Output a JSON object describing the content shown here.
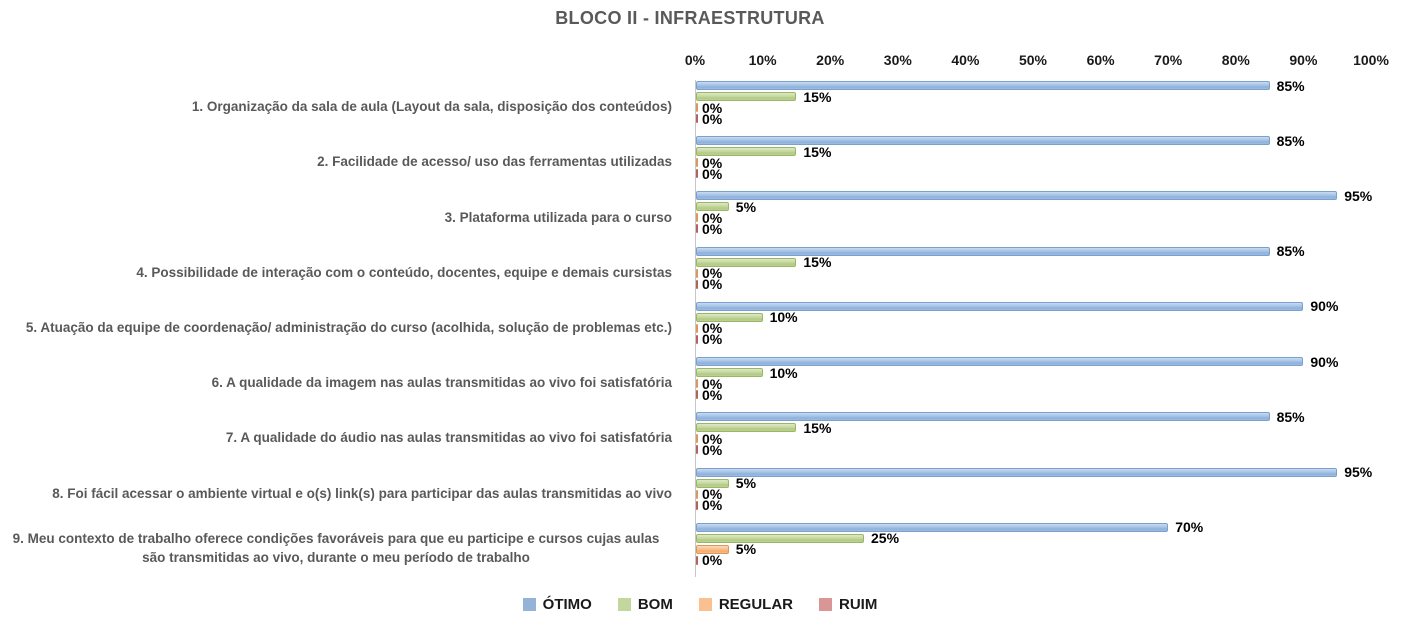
{
  "title": "BLOCO II - INFRAESTRUTURA",
  "chart_data": {
    "type": "bar",
    "orientation": "horizontal",
    "title": "BLOCO II - INFRAESTRUTURA",
    "categories": [
      "1. Organização da sala de aula (Layout da sala, disposição dos conteúdos)",
      "2. Facilidade de acesso/ uso das ferramentas utilizadas",
      "3. Plataforma utilizada para o curso",
      "4. Possibilidade de interação com o conteúdo, docentes, equipe e demais cursistas",
      "5. Atuação da equipe de coordenação/ administração do curso (acolhida, solução de problemas etc.)",
      "6. A qualidade da imagem nas aulas transmitidas ao vivo foi satisfatória",
      "7. A qualidade do áudio nas aulas transmitidas ao vivo foi satisfatória",
      "8. Foi fácil acessar o ambiente virtual e o(s) link(s) para participar das aulas transmitidas ao vivo",
      "9. Meu contexto de trabalho oferece condições favoráveis para que eu participe e cursos cujas aulas são transmitidas ao vivo, durante o meu período de trabalho"
    ],
    "series": [
      {
        "name": "ÓTIMO",
        "color": "#95B3D7",
        "values": [
          85,
          85,
          95,
          85,
          90,
          90,
          85,
          95,
          70
        ]
      },
      {
        "name": "BOM",
        "color": "#C3D69B",
        "values": [
          15,
          15,
          5,
          15,
          10,
          10,
          15,
          5,
          25
        ]
      },
      {
        "name": "REGULAR",
        "color": "#FAC090",
        "values": [
          0,
          0,
          0,
          0,
          0,
          0,
          0,
          0,
          5
        ]
      },
      {
        "name": "RUIM",
        "color": "#D99694",
        "values": [
          0,
          0,
          0,
          0,
          0,
          0,
          0,
          0,
          0
        ]
      }
    ],
    "x_ticks": [
      "0%",
      "10%",
      "20%",
      "30%",
      "40%",
      "50%",
      "60%",
      "70%",
      "80%",
      "90%",
      "100%"
    ],
    "xlim": [
      0,
      100
    ],
    "value_label_suffix": "%",
    "legend_position": "bottom",
    "gridlines": false
  },
  "colors": {
    "title_text": "#595959",
    "category_text": "#595959",
    "value_text": "#000000",
    "axis_line": "#C6C6C6"
  }
}
